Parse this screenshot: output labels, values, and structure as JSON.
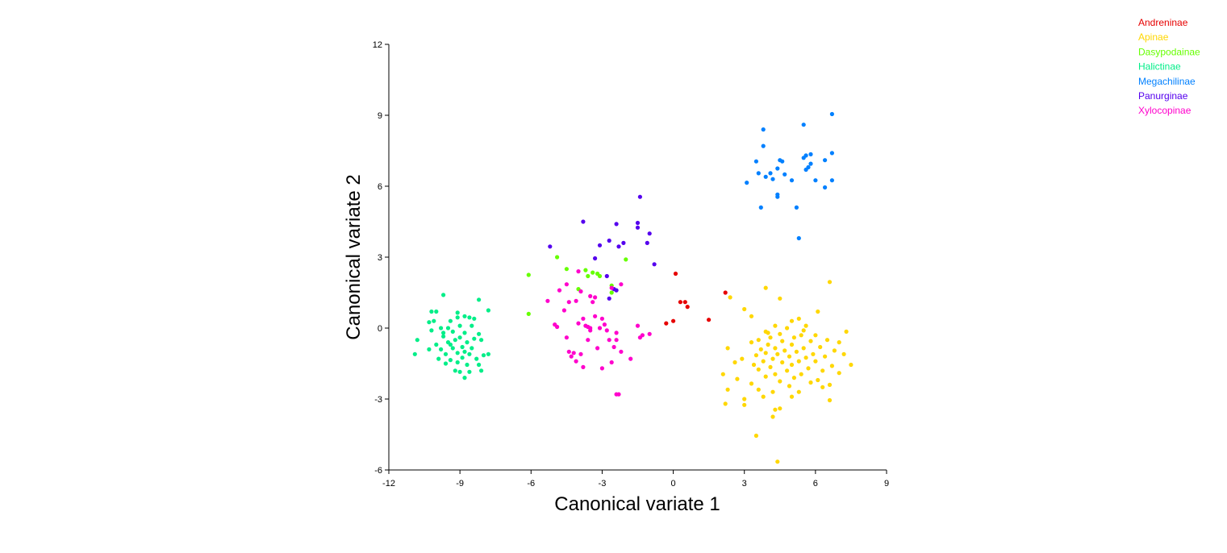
{
  "chart_data": {
    "type": "scatter",
    "title": "",
    "xlabel": "Canonical variate 1",
    "ylabel": "Canonical variate 2",
    "xlim": [
      -12,
      9
    ],
    "ylim": [
      -6,
      12
    ],
    "xticks": [
      -12,
      -9,
      -6,
      -3,
      0,
      3,
      6,
      9
    ],
    "yticks": [
      -6,
      -3,
      0,
      3,
      6,
      9,
      12
    ],
    "grid": false,
    "legend_position": "top-right",
    "series": [
      {
        "name": "Andreninae",
        "color": "#e60000",
        "points": [
          [
            0.1,
            2.3
          ],
          [
            2.2,
            1.5
          ],
          [
            0.3,
            1.1
          ],
          [
            0.5,
            1.1
          ],
          [
            0.6,
            0.9
          ],
          [
            1.5,
            0.35
          ],
          [
            -0.3,
            0.2
          ],
          [
            0.0,
            0.3
          ]
        ]
      },
      {
        "name": "Apinae",
        "color": "#ffd700",
        "points": [
          [
            6.6,
            1.95
          ],
          [
            3.9,
            1.7
          ],
          [
            2.4,
            1.3
          ],
          [
            4.5,
            1.25
          ],
          [
            3.0,
            0.8
          ],
          [
            6.1,
            0.7
          ],
          [
            3.3,
            0.5
          ],
          [
            5.0,
            0.3
          ],
          [
            5.3,
            0.4
          ],
          [
            4.3,
            0.1
          ],
          [
            5.6,
            0.1
          ],
          [
            4.8,
            0.0
          ],
          [
            7.3,
            -0.15
          ],
          [
            3.9,
            -0.15
          ],
          [
            4.5,
            -0.25
          ],
          [
            5.4,
            -0.3
          ],
          [
            6.0,
            -0.3
          ],
          [
            4.1,
            -0.4
          ],
          [
            5.1,
            -0.4
          ],
          [
            3.6,
            -0.5
          ],
          [
            4.6,
            -0.55
          ],
          [
            5.8,
            -0.55
          ],
          [
            6.5,
            -0.5
          ],
          [
            7.0,
            -0.6
          ],
          [
            3.3,
            -0.6
          ],
          [
            4.0,
            -0.7
          ],
          [
            5.0,
            -0.7
          ],
          [
            4.3,
            -0.85
          ],
          [
            5.5,
            -0.85
          ],
          [
            6.2,
            -0.8
          ],
          [
            2.3,
            -0.85
          ],
          [
            3.7,
            -0.9
          ],
          [
            4.7,
            -0.95
          ],
          [
            6.8,
            -0.95
          ],
          [
            3.9,
            -1.05
          ],
          [
            5.2,
            -1.0
          ],
          [
            4.4,
            -1.1
          ],
          [
            5.9,
            -1.1
          ],
          [
            7.2,
            -1.1
          ],
          [
            3.5,
            -1.15
          ],
          [
            4.9,
            -1.2
          ],
          [
            5.6,
            -1.25
          ],
          [
            6.4,
            -1.2
          ],
          [
            2.9,
            -1.3
          ],
          [
            4.2,
            -1.3
          ],
          [
            3.8,
            -1.4
          ],
          [
            5.3,
            -1.4
          ],
          [
            6.0,
            -1.4
          ],
          [
            4.6,
            -1.45
          ],
          [
            7.5,
            -1.55
          ],
          [
            2.6,
            -1.45
          ],
          [
            3.4,
            -1.55
          ],
          [
            5.0,
            -1.55
          ],
          [
            6.7,
            -1.6
          ],
          [
            4.1,
            -1.65
          ],
          [
            5.7,
            -1.7
          ],
          [
            3.6,
            -1.75
          ],
          [
            4.8,
            -1.8
          ],
          [
            6.3,
            -1.8
          ],
          [
            2.1,
            -1.95
          ],
          [
            4.3,
            -1.95
          ],
          [
            5.4,
            -1.95
          ],
          [
            7.0,
            -1.9
          ],
          [
            3.9,
            -2.05
          ],
          [
            5.1,
            -2.1
          ],
          [
            6.1,
            -2.2
          ],
          [
            2.7,
            -2.15
          ],
          [
            4.5,
            -2.25
          ],
          [
            5.8,
            -2.3
          ],
          [
            3.3,
            -2.35
          ],
          [
            4.9,
            -2.45
          ],
          [
            6.6,
            -2.4
          ],
          [
            2.3,
            -2.6
          ],
          [
            3.6,
            -2.6
          ],
          [
            4.2,
            -2.7
          ],
          [
            5.3,
            -2.7
          ],
          [
            3.8,
            -2.9
          ],
          [
            5.0,
            -2.9
          ],
          [
            6.6,
            -3.05
          ],
          [
            3.0,
            -3.0
          ],
          [
            2.2,
            -3.2
          ],
          [
            3.0,
            -3.25
          ],
          [
            4.5,
            -3.4
          ],
          [
            4.3,
            -3.45
          ],
          [
            4.2,
            -3.75
          ],
          [
            3.5,
            -4.55
          ],
          [
            4.4,
            -5.65
          ],
          [
            5.5,
            -0.1
          ],
          [
            4.0,
            -0.2
          ],
          [
            6.3,
            -2.5
          ]
        ]
      },
      {
        "name": "Dasypodainae",
        "color": "#66ff00",
        "points": [
          [
            -4.9,
            3.0
          ],
          [
            -2.0,
            2.9
          ],
          [
            -4.5,
            2.5
          ],
          [
            -3.7,
            2.45
          ],
          [
            -3.4,
            2.35
          ],
          [
            -3.2,
            2.3
          ],
          [
            -3.6,
            2.2
          ],
          [
            -3.1,
            2.2
          ],
          [
            -6.1,
            2.25
          ],
          [
            -2.6,
            1.8
          ],
          [
            -4.0,
            1.65
          ],
          [
            -2.6,
            1.5
          ],
          [
            -6.1,
            0.6
          ]
        ]
      },
      {
        "name": "Halictinae",
        "color": "#00ee88",
        "points": [
          [
            -9.7,
            1.4
          ],
          [
            -8.2,
            1.2
          ],
          [
            -10.2,
            0.7
          ],
          [
            -10.0,
            0.7
          ],
          [
            -7.8,
            0.75
          ],
          [
            -9.1,
            0.65
          ],
          [
            -8.6,
            0.45
          ],
          [
            -8.8,
            0.5
          ],
          [
            -8.4,
            0.4
          ],
          [
            -9.1,
            0.45
          ],
          [
            -10.3,
            0.25
          ],
          [
            -10.1,
            0.3
          ],
          [
            -9.4,
            0.3
          ],
          [
            -9.8,
            0.0
          ],
          [
            -9.5,
            0.0
          ],
          [
            -9.0,
            0.1
          ],
          [
            -8.5,
            0.1
          ],
          [
            -10.2,
            -0.1
          ],
          [
            -9.3,
            -0.15
          ],
          [
            -8.8,
            -0.2
          ],
          [
            -8.2,
            -0.25
          ],
          [
            -10.8,
            -0.5
          ],
          [
            -9.7,
            -0.35
          ],
          [
            -9.0,
            -0.4
          ],
          [
            -8.4,
            -0.45
          ],
          [
            -10.0,
            -0.7
          ],
          [
            -9.5,
            -0.6
          ],
          [
            -9.2,
            -0.5
          ],
          [
            -8.7,
            -0.6
          ],
          [
            -8.1,
            -0.5
          ],
          [
            -10.3,
            -0.9
          ],
          [
            -9.8,
            -0.9
          ],
          [
            -9.3,
            -0.85
          ],
          [
            -8.9,
            -0.8
          ],
          [
            -8.5,
            -0.85
          ],
          [
            -10.9,
            -1.1
          ],
          [
            -9.6,
            -1.1
          ],
          [
            -9.1,
            -1.05
          ],
          [
            -8.6,
            -1.1
          ],
          [
            -8.0,
            -1.15
          ],
          [
            -7.8,
            -1.1
          ],
          [
            -9.9,
            -1.3
          ],
          [
            -9.4,
            -1.35
          ],
          [
            -8.9,
            -1.25
          ],
          [
            -8.3,
            -1.3
          ],
          [
            -9.6,
            -1.5
          ],
          [
            -9.1,
            -1.45
          ],
          [
            -8.7,
            -1.55
          ],
          [
            -8.2,
            -1.55
          ],
          [
            -9.2,
            -1.8
          ],
          [
            -9.0,
            -1.85
          ],
          [
            -8.6,
            -1.85
          ],
          [
            -8.1,
            -1.8
          ],
          [
            -8.8,
            -2.1
          ],
          [
            -9.7,
            -0.2
          ],
          [
            -9.4,
            -0.7
          ],
          [
            -8.8,
            -1.0
          ]
        ]
      },
      {
        "name": "Megachilinae",
        "color": "#0080ff",
        "points": [
          [
            6.7,
            9.05
          ],
          [
            5.5,
            8.6
          ],
          [
            3.8,
            8.4
          ],
          [
            3.8,
            7.7
          ],
          [
            5.8,
            7.35
          ],
          [
            6.7,
            7.4
          ],
          [
            5.5,
            7.2
          ],
          [
            5.6,
            7.3
          ],
          [
            3.5,
            7.05
          ],
          [
            4.5,
            7.1
          ],
          [
            4.6,
            7.05
          ],
          [
            6.4,
            7.1
          ],
          [
            5.8,
            6.95
          ],
          [
            5.7,
            6.8
          ],
          [
            5.6,
            6.7
          ],
          [
            4.4,
            6.75
          ],
          [
            3.6,
            6.55
          ],
          [
            4.1,
            6.55
          ],
          [
            4.7,
            6.5
          ],
          [
            3.9,
            6.4
          ],
          [
            4.2,
            6.3
          ],
          [
            5.0,
            6.25
          ],
          [
            6.0,
            6.25
          ],
          [
            6.7,
            6.25
          ],
          [
            3.1,
            6.15
          ],
          [
            6.4,
            5.95
          ],
          [
            4.4,
            5.65
          ],
          [
            4.4,
            5.55
          ],
          [
            3.7,
            5.1
          ],
          [
            5.2,
            5.1
          ],
          [
            5.3,
            3.8
          ]
        ]
      },
      {
        "name": "Panurginae",
        "color": "#5500ee",
        "points": [
          [
            -1.4,
            5.55
          ],
          [
            -3.8,
            4.5
          ],
          [
            -1.5,
            4.45
          ],
          [
            -2.4,
            4.4
          ],
          [
            -1.5,
            4.25
          ],
          [
            -1.0,
            4.0
          ],
          [
            -5.2,
            3.45
          ],
          [
            -2.7,
            3.7
          ],
          [
            -1.1,
            3.6
          ],
          [
            -3.1,
            3.5
          ],
          [
            -2.3,
            3.45
          ],
          [
            -2.1,
            3.6
          ],
          [
            -3.3,
            2.95
          ],
          [
            -0.8,
            2.7
          ],
          [
            -2.8,
            2.2
          ],
          [
            -2.5,
            1.65
          ],
          [
            -2.4,
            1.6
          ],
          [
            -2.7,
            1.25
          ]
        ]
      },
      {
        "name": "Xylocopinae",
        "color": "#ff00cc",
        "points": [
          [
            -4.5,
            1.85
          ],
          [
            -3.3,
            1.3
          ],
          [
            -2.2,
            1.85
          ],
          [
            -4.8,
            1.6
          ],
          [
            -3.9,
            1.55
          ],
          [
            -5.3,
            1.15
          ],
          [
            -4.4,
            1.1
          ],
          [
            -4.1,
            1.15
          ],
          [
            -3.4,
            1.1
          ],
          [
            -4.6,
            0.75
          ],
          [
            -3.3,
            0.5
          ],
          [
            -3.8,
            0.4
          ],
          [
            -3.0,
            0.4
          ],
          [
            -4.0,
            0.2
          ],
          [
            -2.9,
            0.15
          ],
          [
            -5.0,
            0.15
          ],
          [
            -4.9,
            0.05
          ],
          [
            -3.7,
            0.1
          ],
          [
            -3.6,
            0.05
          ],
          [
            -3.5,
            0.0
          ],
          [
            -3.1,
            0.0
          ],
          [
            -2.8,
            -0.1
          ],
          [
            -1.5,
            0.1
          ],
          [
            -2.4,
            -0.2
          ],
          [
            -1.3,
            -0.3
          ],
          [
            -1.0,
            -0.25
          ],
          [
            -4.5,
            -0.4
          ],
          [
            -3.6,
            -0.5
          ],
          [
            -2.7,
            -0.5
          ],
          [
            -2.4,
            -0.5
          ],
          [
            -1.4,
            -0.4
          ],
          [
            -3.2,
            -0.85
          ],
          [
            -2.5,
            -0.8
          ],
          [
            -2.2,
            -1.0
          ],
          [
            -4.4,
            -1.0
          ],
          [
            -4.2,
            -1.05
          ],
          [
            -4.3,
            -1.2
          ],
          [
            -3.9,
            -1.1
          ],
          [
            -1.8,
            -1.3
          ],
          [
            -4.1,
            -1.4
          ],
          [
            -2.6,
            -1.45
          ],
          [
            -3.8,
            -1.65
          ],
          [
            -3.0,
            -1.7
          ],
          [
            -2.4,
            -2.8
          ],
          [
            -2.3,
            -2.8
          ],
          [
            -3.5,
            1.35
          ],
          [
            -2.6,
            1.7
          ],
          [
            -4.0,
            2.4
          ],
          [
            -3.5,
            -0.1
          ]
        ]
      }
    ]
  }
}
